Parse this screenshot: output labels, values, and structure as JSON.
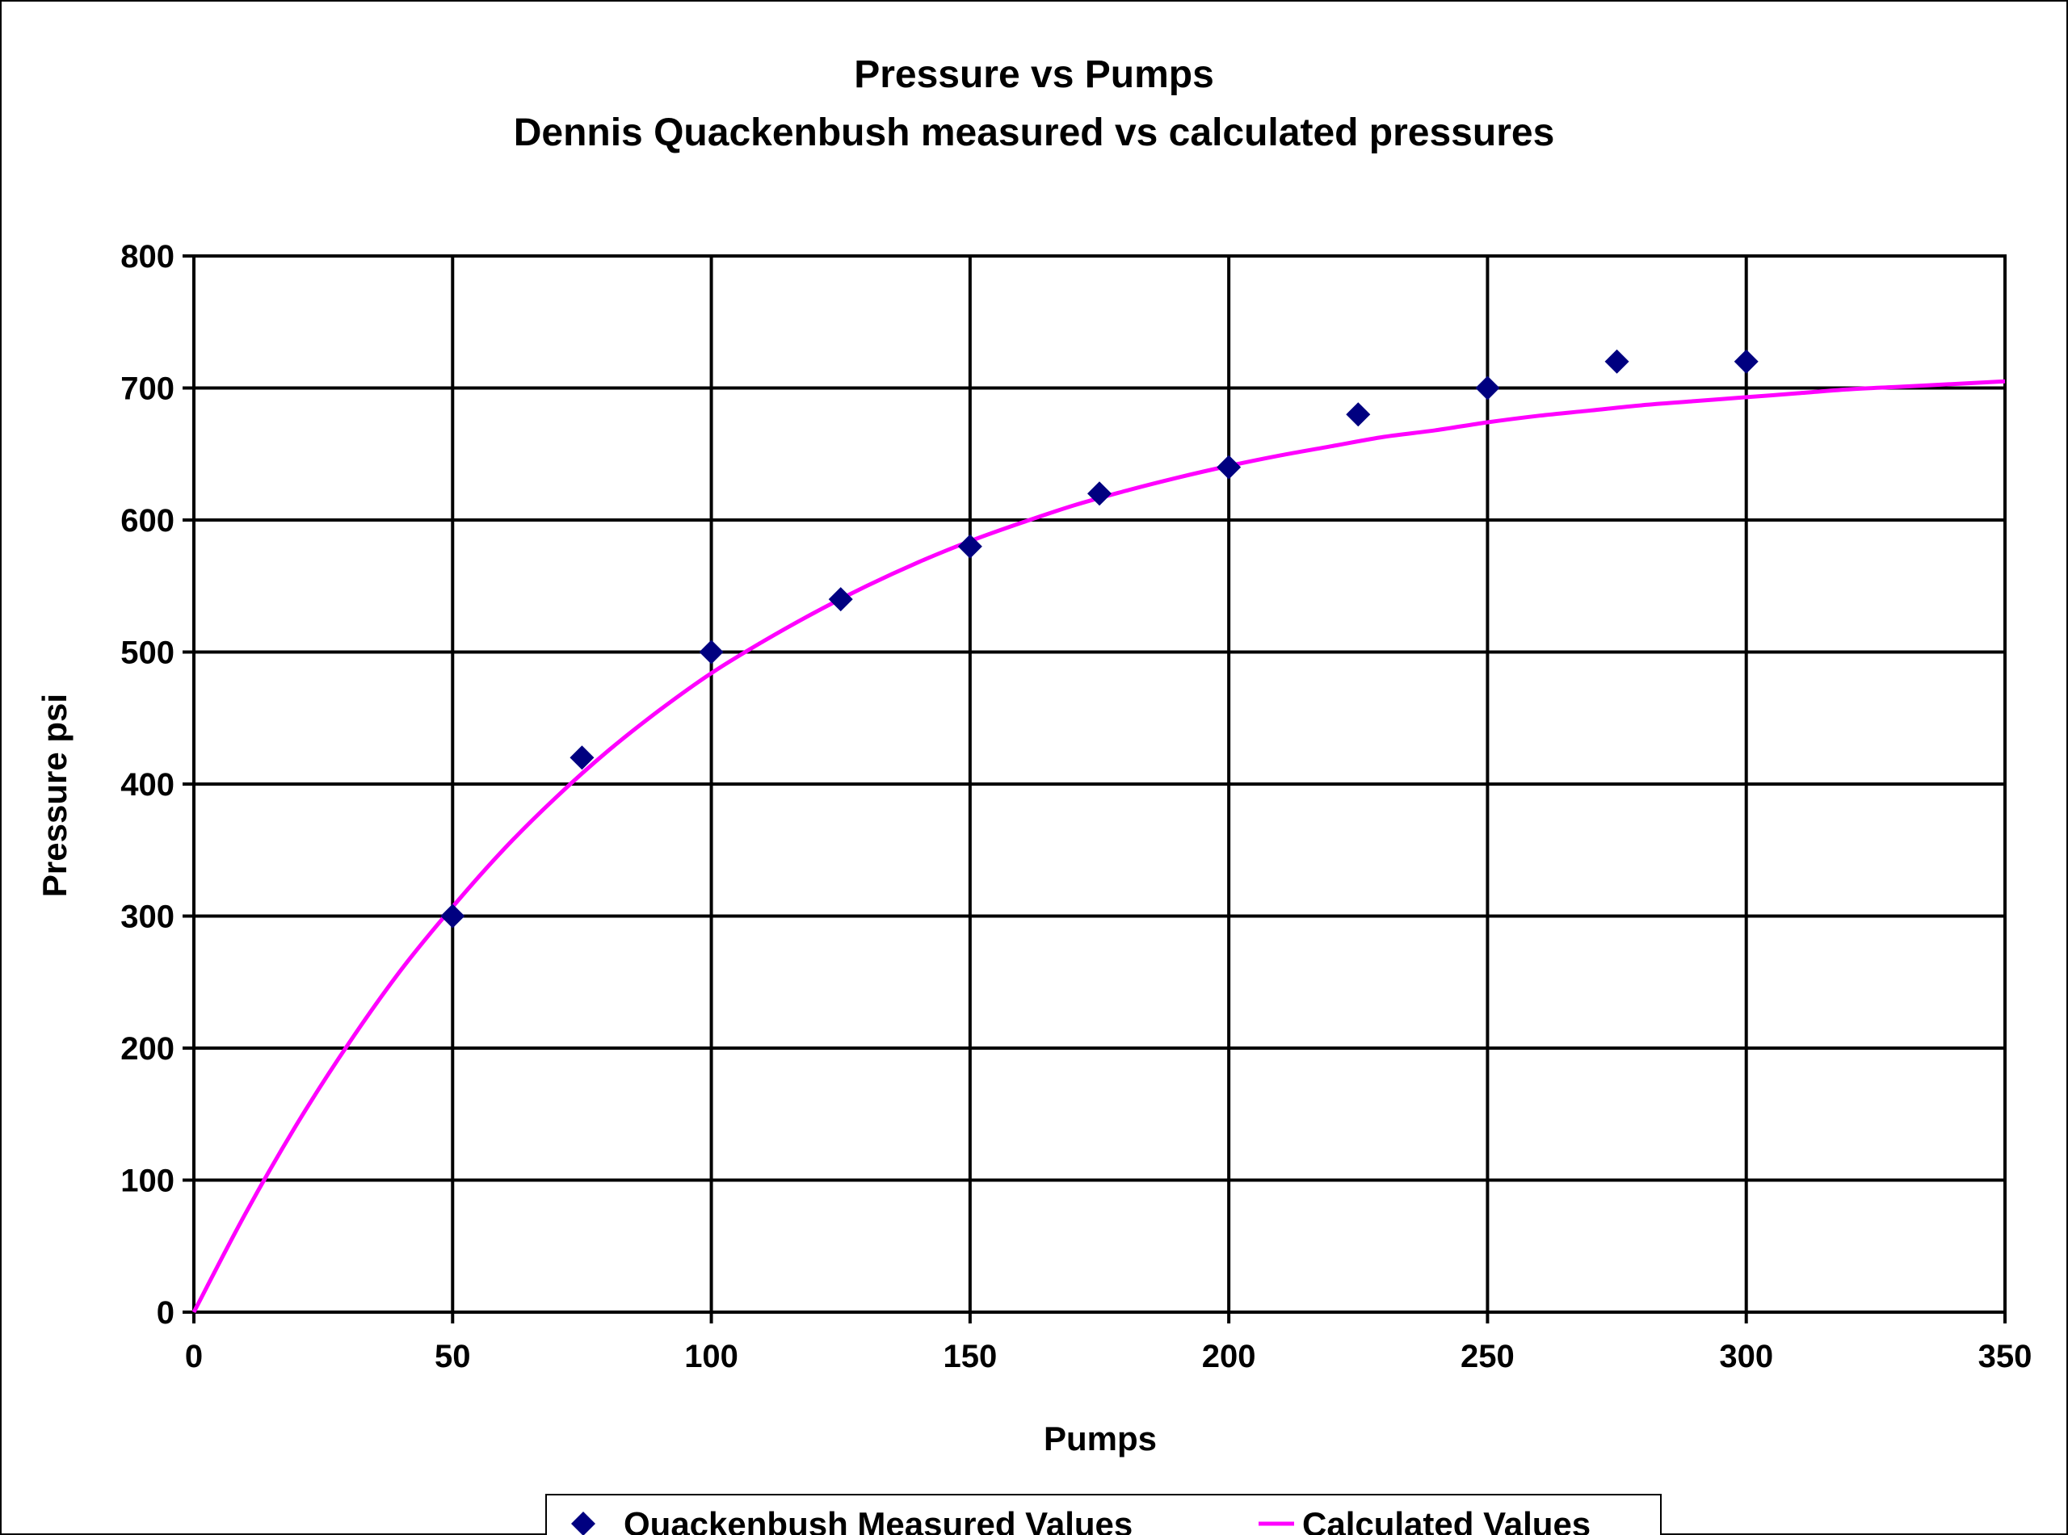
{
  "chart_data": {
    "type": "scatter",
    "title": "Pressure vs Pumps",
    "subtitle": "Dennis Quackenbush measured vs calculated pressures",
    "xlabel": "Pumps",
    "ylabel": "Pressure psi",
    "xlim": [
      0,
      350
    ],
    "ylim": [
      0,
      800
    ],
    "xticks": [
      0,
      50,
      100,
      150,
      200,
      250,
      300,
      350
    ],
    "yticks": [
      0,
      100,
      200,
      300,
      400,
      500,
      600,
      700,
      800
    ],
    "grid": true,
    "legend_position": "bottom",
    "series": [
      {
        "name": "Quackenbush Measured Values",
        "kind": "scatter",
        "marker": "diamond",
        "color": "#000080",
        "x": [
          50,
          75,
          100,
          125,
          150,
          175,
          200,
          225,
          250,
          275,
          300
        ],
        "y": [
          300,
          420,
          500,
          540,
          580,
          620,
          640,
          680,
          700,
          720,
          720
        ]
      },
      {
        "name": "Calculated Values",
        "kind": "line",
        "color": "#ff00ff",
        "x": [
          0,
          10,
          20,
          30,
          40,
          50,
          60,
          70,
          80,
          90,
          100,
          110,
          120,
          130,
          140,
          150,
          160,
          170,
          180,
          190,
          200,
          210,
          220,
          230,
          240,
          250,
          260,
          270,
          280,
          290,
          300,
          310,
          320,
          330,
          340,
          350
        ],
        "y": [
          0,
          75,
          143,
          204,
          259,
          307,
          351,
          390,
          425,
          456,
          484,
          508,
          530,
          550,
          568,
          584,
          598,
          611,
          622,
          632,
          641,
          649,
          656,
          663,
          668,
          674,
          679,
          683,
          687,
          690,
          693,
          696,
          699,
          701,
          703,
          705
        ]
      }
    ]
  }
}
